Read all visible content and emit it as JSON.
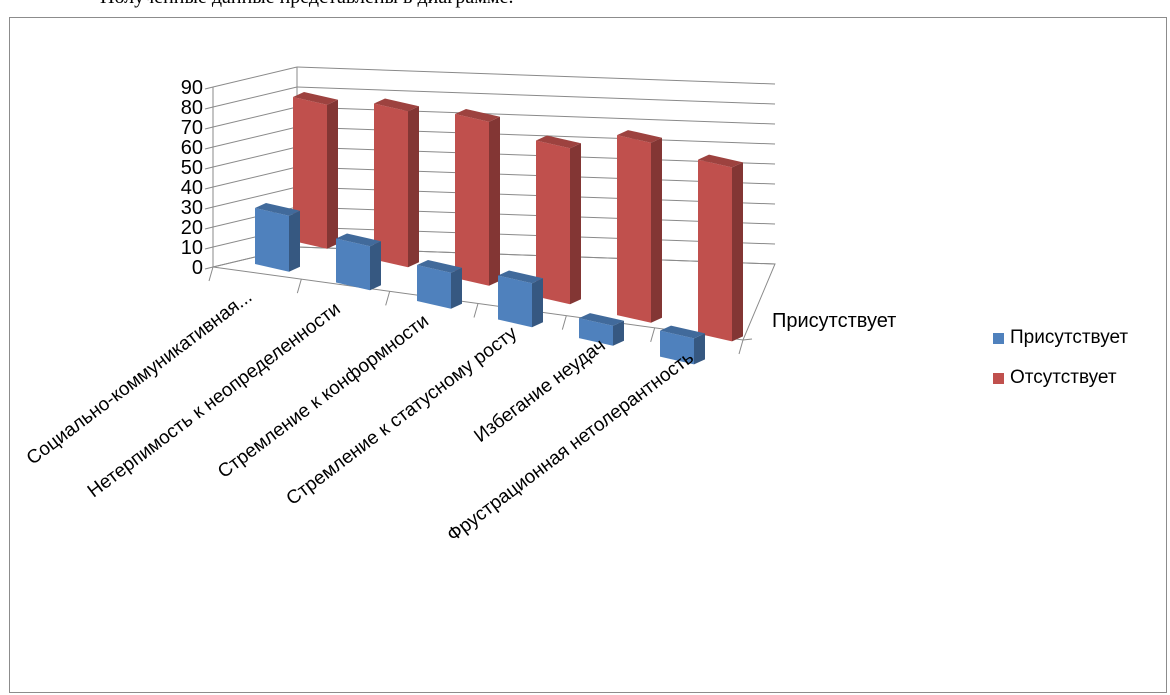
{
  "caption": "Полученные данные представлены в диаграмме.",
  "chart_data": {
    "type": "bar",
    "categories": [
      "Социально-коммуникативная...",
      "Нетерпимость к неопределенности",
      "Стремление к конформности",
      "Стремление к статусному росту",
      "Избегание неудач",
      "Фрустрационная нетолерантность"
    ],
    "series": [
      {
        "name": "Присутствует",
        "values": [
          28,
          22,
          18,
          22,
          10,
          13
        ],
        "color": "#4f81bd"
      },
      {
        "name": "Отсутствует",
        "values": [
          72,
          78,
          82,
          78,
          90,
          87
        ],
        "color": "#c0504d"
      }
    ],
    "yticks": [
      "0",
      "10",
      "20",
      "30",
      "40",
      "50",
      "60",
      "70",
      "80",
      "90"
    ],
    "ylim": [
      0,
      90
    ],
    "depth_label": "Присутствует",
    "grid": true,
    "legend": "right"
  }
}
